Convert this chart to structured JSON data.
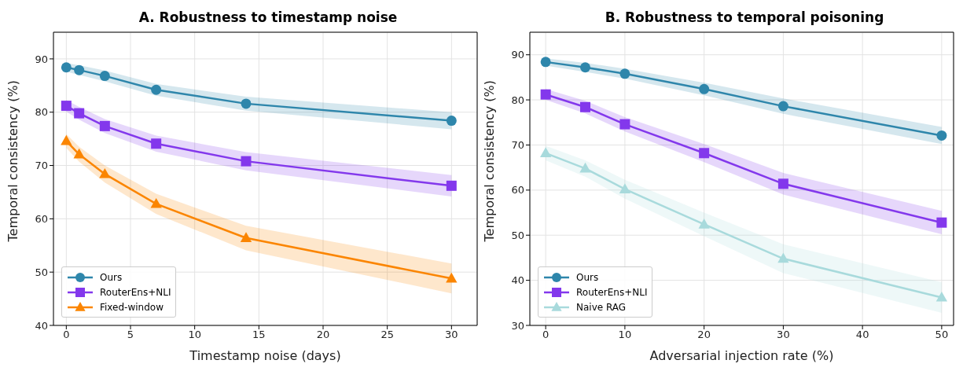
{
  "chart_data": [
    {
      "type": "line",
      "title": "A. Robustness to timestamp noise",
      "xlabel": "Timestamp noise (days)",
      "ylabel": "Temporal consistency (%)",
      "x": [
        0,
        1,
        3,
        7,
        14,
        30
      ],
      "xlim": [
        -1,
        32
      ],
      "xticks": [
        0,
        5,
        10,
        15,
        20,
        25,
        30
      ],
      "ylim": [
        40,
        95
      ],
      "yticks": [
        40,
        50,
        60,
        70,
        80,
        90
      ],
      "grid": true,
      "legend": "bottom left",
      "line_style": "solid",
      "series": [
        {
          "name": "Ours",
          "color": "#2e86ab",
          "marker": "circle",
          "values": [
            88.4,
            87.9,
            86.8,
            84.2,
            81.6,
            78.4
          ],
          "lower": [
            87.6,
            87.0,
            85.8,
            83.1,
            80.3,
            76.8
          ],
          "upper": [
            89.2,
            88.8,
            87.8,
            85.3,
            82.9,
            80.0
          ]
        },
        {
          "name": "RouterEns+NLI",
          "color": "#8338ec",
          "marker": "square",
          "values": [
            81.2,
            79.8,
            77.4,
            74.1,
            70.8,
            66.2
          ],
          "lower": [
            80.1,
            78.6,
            76.1,
            72.6,
            69.1,
            64.2
          ],
          "upper": [
            82.3,
            81.0,
            78.7,
            75.6,
            72.5,
            68.2
          ]
        },
        {
          "name": "Fixed-window",
          "color": "#fb8500",
          "marker": "triangle",
          "values": [
            74.6,
            72.1,
            68.4,
            62.8,
            56.4,
            48.8
          ],
          "lower": [
            73.3,
            70.7,
            66.8,
            60.9,
            54.1,
            46.0
          ],
          "upper": [
            75.9,
            73.5,
            70.0,
            64.7,
            58.7,
            51.6
          ]
        }
      ]
    },
    {
      "type": "line",
      "title": "B. Robustness to temporal poisoning",
      "xlabel": "Adversarial injection rate (%)",
      "ylabel": "Temporal consistency (%)",
      "x": [
        0,
        5,
        10,
        20,
        30,
        50
      ],
      "xlim": [
        -2,
        51.5
      ],
      "xticks": [
        0,
        10,
        20,
        30,
        40,
        50
      ],
      "ylim": [
        30,
        95
      ],
      "yticks": [
        30,
        40,
        50,
        60,
        70,
        80,
        90
      ],
      "grid": true,
      "legend": "bottom left",
      "line_style": "solid",
      "series": [
        {
          "name": "Ours",
          "color": "#2e86ab",
          "marker": "circle",
          "values": [
            88.4,
            87.2,
            85.8,
            82.4,
            78.6,
            72.1
          ],
          "lower": [
            87.6,
            86.2,
            84.7,
            81.0,
            76.9,
            70.2
          ],
          "upper": [
            89.2,
            88.2,
            86.9,
            83.8,
            80.3,
            74.0
          ]
        },
        {
          "name": "RouterEns+NLI",
          "color": "#8338ec",
          "marker": "square",
          "values": [
            81.2,
            78.4,
            74.6,
            68.2,
            61.4,
            52.8
          ],
          "lower": [
            80.0,
            77.0,
            73.0,
            66.2,
            59.0,
            50.2
          ],
          "upper": [
            82.4,
            79.8,
            76.2,
            70.2,
            63.8,
            55.4
          ]
        },
        {
          "name": "Naive RAG",
          "color": "#a8dadc",
          "marker": "triangle",
          "values": [
            68.2,
            64.8,
            60.2,
            52.4,
            44.8,
            36.2
          ],
          "lower": [
            66.6,
            63.0,
            58.1,
            49.8,
            41.6,
            32.8
          ],
          "upper": [
            69.8,
            66.6,
            62.3,
            55.0,
            48.0,
            39.6
          ]
        }
      ]
    }
  ]
}
